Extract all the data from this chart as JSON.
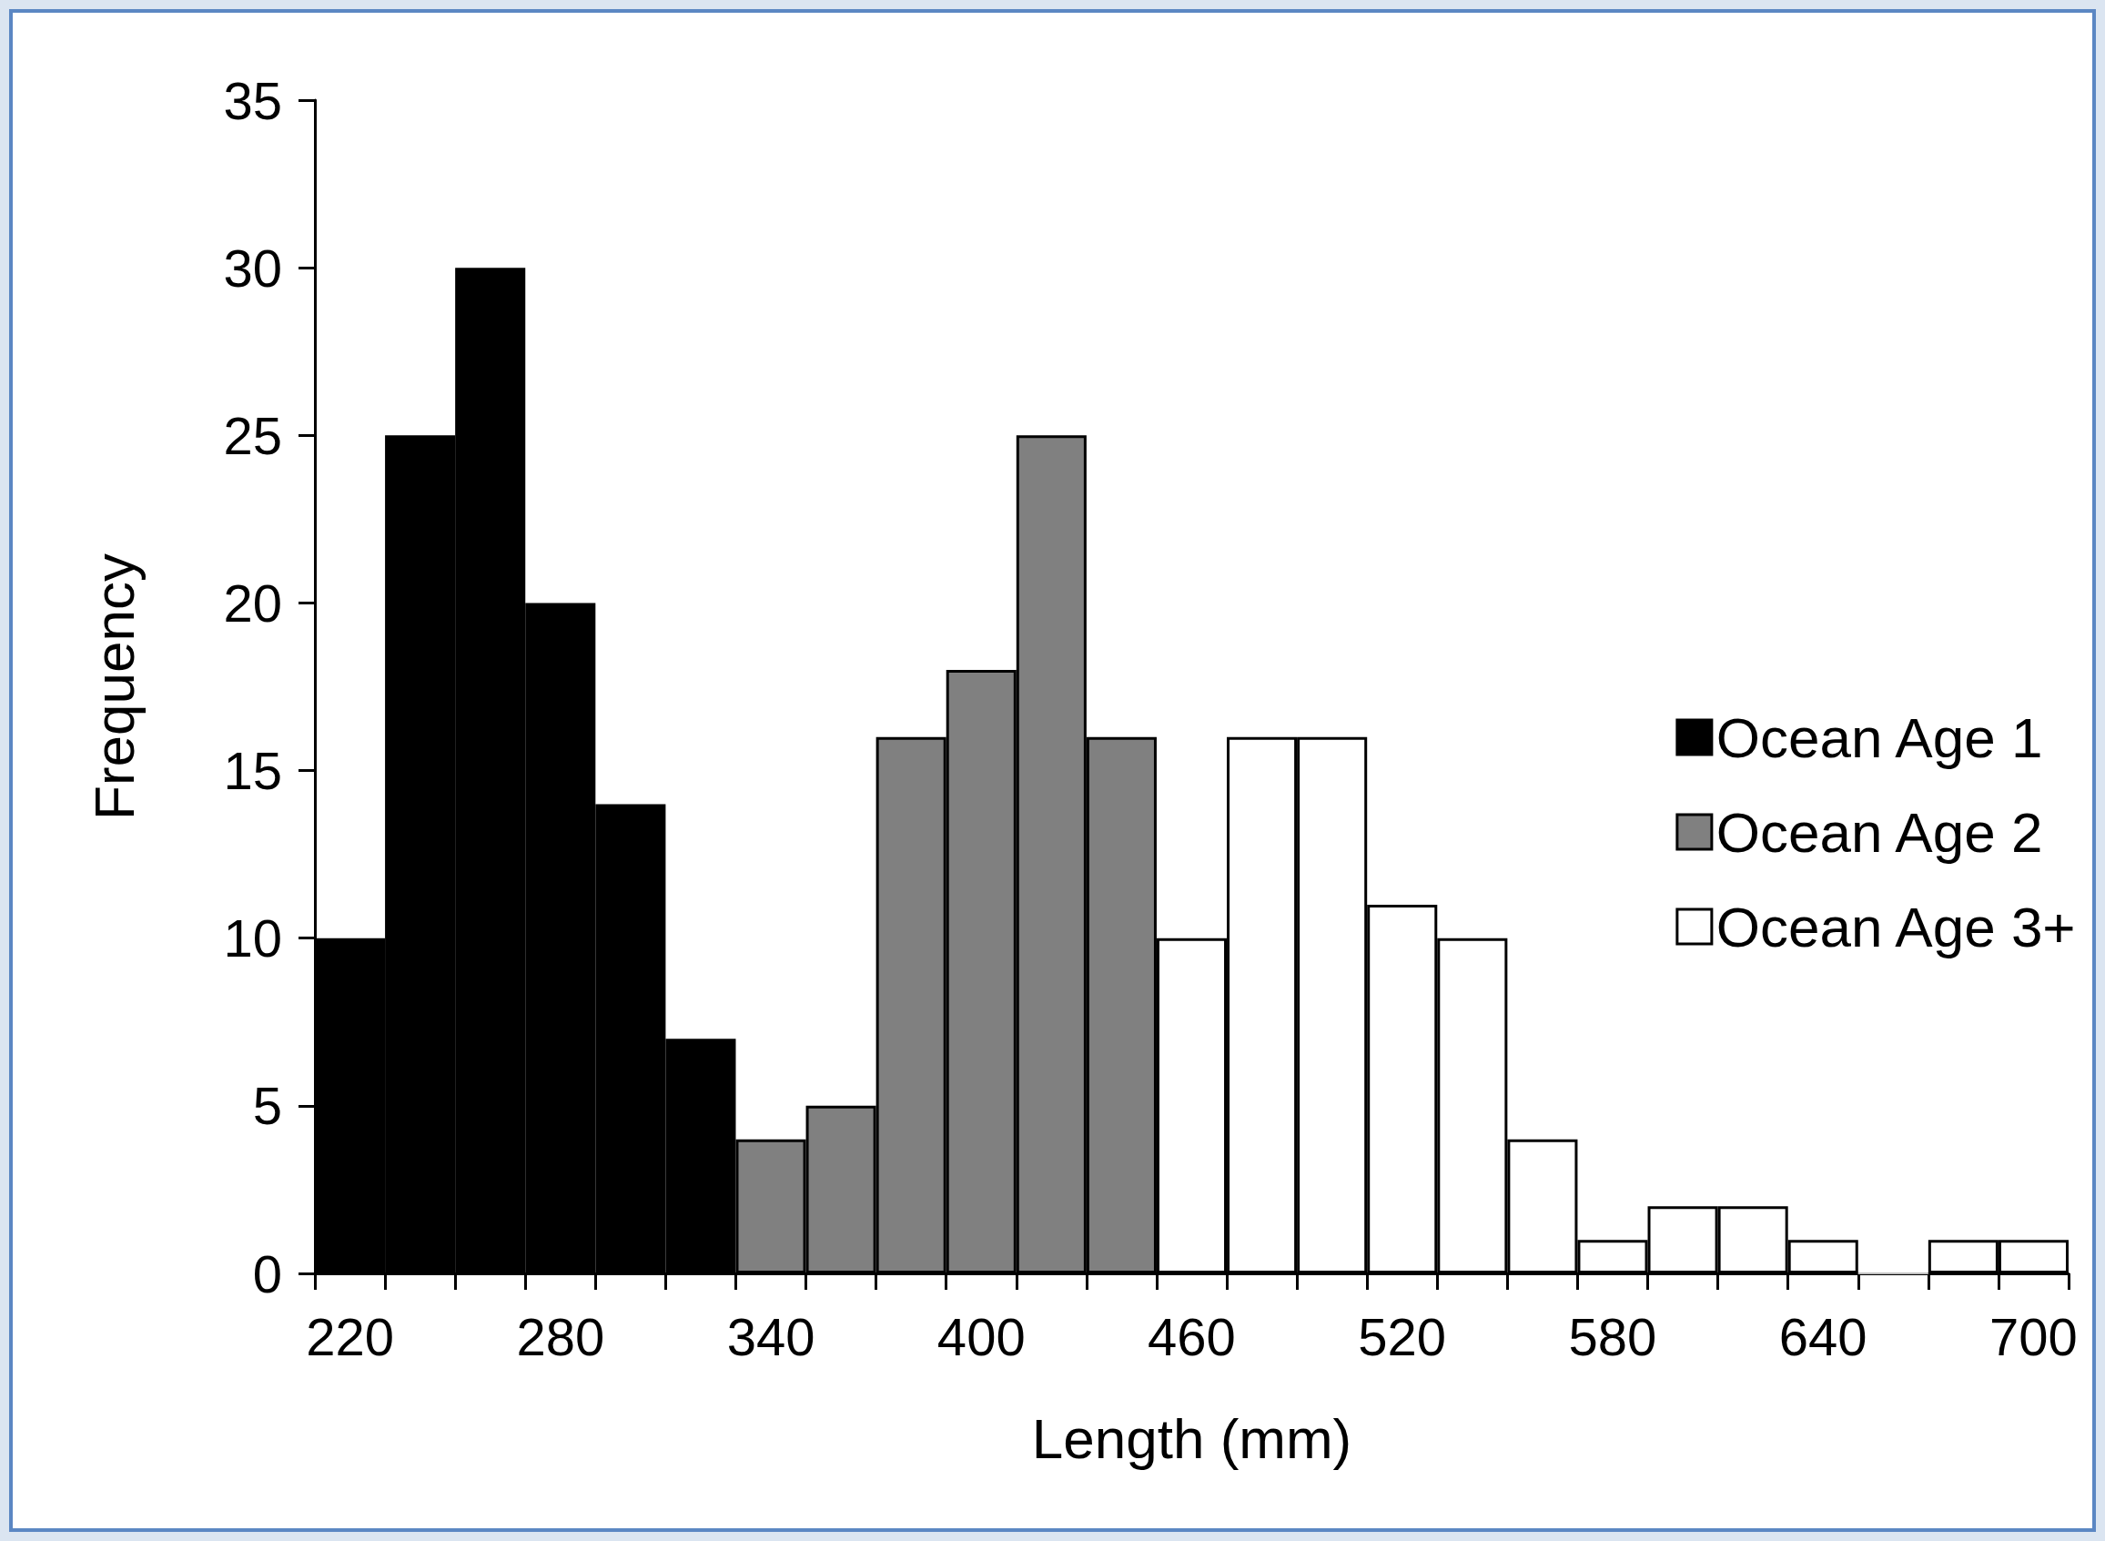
{
  "chart_data": {
    "type": "bar",
    "xlabel": "Length (mm)",
    "ylabel": "Frequency",
    "categories": [
      "220",
      null,
      null,
      "280",
      null,
      null,
      "340",
      null,
      null,
      "400",
      null,
      null,
      "460",
      null,
      null,
      "520",
      null,
      null,
      "580",
      null,
      null,
      "640",
      null,
      null,
      "700"
    ],
    "series": [
      {
        "name": "Ocean Age 1",
        "color": "#000000",
        "values": [
          10,
          25,
          30,
          20,
          14,
          7,
          null,
          null,
          null,
          null,
          null,
          null,
          null,
          null,
          null,
          null,
          null,
          null,
          null,
          null,
          null,
          null,
          null,
          null,
          null
        ]
      },
      {
        "name": "Ocean Age 2",
        "color": "#808080",
        "values": [
          null,
          null,
          null,
          null,
          null,
          null,
          4,
          5,
          16,
          18,
          25,
          16,
          null,
          null,
          null,
          null,
          null,
          null,
          null,
          null,
          null,
          null,
          null,
          null,
          null
        ]
      },
      {
        "name": "Ocean Age 3+",
        "color": "#ffffff",
        "values": [
          null,
          null,
          null,
          null,
          null,
          null,
          null,
          null,
          null,
          null,
          null,
          null,
          10,
          16,
          16,
          11,
          10,
          4,
          1,
          2,
          2,
          1,
          0,
          1,
          1
        ]
      }
    ],
    "ylim": [
      0,
      35
    ],
    "yticks": [
      0,
      5,
      10,
      15,
      20,
      25,
      30,
      35
    ],
    "grid": false,
    "legend": "right"
  }
}
